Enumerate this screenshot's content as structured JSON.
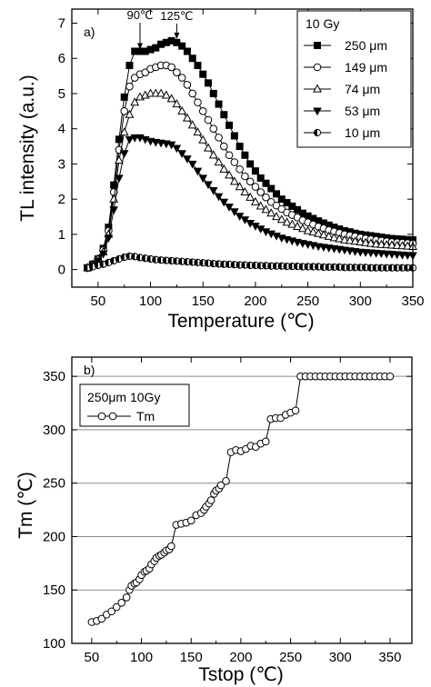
{
  "chart_data": [
    {
      "type": "line",
      "panel_label": "a)",
      "xlabel": "Temperature (℃)",
      "ylabel": "TL intensity (a.u.)",
      "xlim": [
        25,
        350
      ],
      "ylim": [
        -0.5,
        7.4
      ],
      "xticks": [
        50,
        100,
        150,
        200,
        250,
        300,
        350
      ],
      "xtick_labels": [
        "50",
        "100",
        "150",
        "200",
        "250",
        "300",
        "350"
      ],
      "yticks": [
        0,
        1,
        2,
        3,
        4,
        5,
        6,
        7
      ],
      "ytick_labels": [
        "0",
        "1",
        "2",
        "3",
        "4",
        "5",
        "6",
        "7"
      ],
      "grid": false,
      "legend_title": "10 Gy",
      "legend_position": "top-right",
      "annotations": [
        {
          "text": "90℃",
          "x": 90,
          "y": 6.2
        },
        {
          "text": "125℃",
          "x": 125,
          "y": 6.5
        }
      ],
      "series": [
        {
          "name": "250 μm",
          "marker": "square-filled",
          "x": [
            40,
            45,
            50,
            55,
            60,
            65,
            70,
            75,
            80,
            85,
            90,
            95,
            100,
            105,
            110,
            115,
            120,
            125,
            130,
            135,
            140,
            145,
            150,
            155,
            160,
            165,
            170,
            175,
            180,
            185,
            190,
            195,
            200,
            205,
            210,
            215,
            220,
            225,
            230,
            235,
            240,
            245,
            250,
            255,
            260,
            265,
            270,
            275,
            280,
            285,
            290,
            295,
            300,
            305,
            310,
            315,
            320,
            325,
            330,
            335,
            340,
            345,
            350
          ],
          "y": [
            0.05,
            0.15,
            0.3,
            0.6,
            1.2,
            2.4,
            3.7,
            4.9,
            5.8,
            6.2,
            6.2,
            6.2,
            6.25,
            6.3,
            6.4,
            6.45,
            6.5,
            6.45,
            6.35,
            6.2,
            6.0,
            5.8,
            5.55,
            5.3,
            5.0,
            4.7,
            4.4,
            4.1,
            3.8,
            3.5,
            3.25,
            3.0,
            2.8,
            2.6,
            2.45,
            2.3,
            2.15,
            2.0,
            1.9,
            1.8,
            1.7,
            1.6,
            1.52,
            1.45,
            1.38,
            1.32,
            1.26,
            1.2,
            1.15,
            1.1,
            1.07,
            1.03,
            1.0,
            0.98,
            0.96,
            0.94,
            0.92,
            0.9,
            0.88,
            0.87,
            0.86,
            0.85,
            0.84
          ]
        },
        {
          "name": "149 μm",
          "marker": "circle-open",
          "x": [
            40,
            45,
            50,
            55,
            60,
            65,
            70,
            75,
            80,
            85,
            90,
            95,
            100,
            105,
            110,
            115,
            120,
            125,
            130,
            135,
            140,
            145,
            150,
            155,
            160,
            165,
            170,
            175,
            180,
            185,
            190,
            195,
            200,
            205,
            210,
            215,
            220,
            225,
            230,
            235,
            240,
            245,
            250,
            255,
            260,
            265,
            270,
            275,
            280,
            285,
            290,
            295,
            300,
            305,
            310,
            315,
            320,
            325,
            330,
            335,
            340,
            345,
            350
          ],
          "y": [
            0.05,
            0.15,
            0.3,
            0.55,
            1.1,
            2.2,
            3.4,
            4.5,
            5.2,
            5.45,
            5.55,
            5.6,
            5.7,
            5.75,
            5.8,
            5.8,
            5.75,
            5.6,
            5.45,
            5.25,
            5.0,
            4.75,
            4.5,
            4.25,
            4.0,
            3.75,
            3.5,
            3.25,
            3.05,
            2.85,
            2.65,
            2.5,
            2.35,
            2.2,
            2.05,
            1.92,
            1.82,
            1.72,
            1.62,
            1.55,
            1.48,
            1.4,
            1.34,
            1.28,
            1.22,
            1.17,
            1.12,
            1.08,
            1.04,
            1.0,
            0.97,
            0.94,
            0.91,
            0.88,
            0.86,
            0.84,
            0.82,
            0.8,
            0.78,
            0.77,
            0.76,
            0.75,
            0.74
          ]
        },
        {
          "name": "74 μm",
          "marker": "triangle-up-open",
          "x": [
            40,
            45,
            50,
            55,
            60,
            65,
            70,
            75,
            80,
            85,
            90,
            95,
            100,
            105,
            110,
            115,
            120,
            125,
            130,
            135,
            140,
            145,
            150,
            155,
            160,
            165,
            170,
            175,
            180,
            185,
            190,
            195,
            200,
            205,
            210,
            215,
            220,
            225,
            230,
            235,
            240,
            245,
            250,
            255,
            260,
            265,
            270,
            275,
            280,
            285,
            290,
            295,
            300,
            305,
            310,
            315,
            320,
            325,
            330,
            335,
            340,
            345,
            350
          ],
          "y": [
            0.05,
            0.15,
            0.3,
            0.5,
            1.0,
            2.0,
            3.1,
            3.9,
            4.4,
            4.75,
            4.9,
            4.95,
            5.0,
            5.0,
            5.0,
            4.95,
            4.85,
            4.7,
            4.5,
            4.3,
            4.1,
            3.9,
            3.68,
            3.45,
            3.25,
            3.05,
            2.85,
            2.68,
            2.5,
            2.35,
            2.2,
            2.05,
            1.92,
            1.8,
            1.7,
            1.6,
            1.5,
            1.42,
            1.34,
            1.28,
            1.22,
            1.16,
            1.1,
            1.06,
            1.02,
            0.98,
            0.94,
            0.9,
            0.87,
            0.84,
            0.82,
            0.8,
            0.78,
            0.76,
            0.74,
            0.72,
            0.71,
            0.7,
            0.69,
            0.68,
            0.67,
            0.66,
            0.65
          ]
        },
        {
          "name": "53 μm",
          "marker": "triangle-down-filled",
          "x": [
            40,
            45,
            50,
            55,
            60,
            65,
            70,
            75,
            80,
            85,
            90,
            95,
            100,
            105,
            110,
            115,
            120,
            125,
            130,
            135,
            140,
            145,
            150,
            155,
            160,
            165,
            170,
            175,
            180,
            185,
            190,
            195,
            200,
            205,
            210,
            215,
            220,
            225,
            230,
            235,
            240,
            245,
            250,
            255,
            260,
            265,
            270,
            275,
            280,
            285,
            290,
            295,
            300,
            305,
            310,
            315,
            320,
            325,
            330,
            335,
            340,
            345,
            350
          ],
          "y": [
            0.05,
            0.12,
            0.25,
            0.45,
            0.9,
            1.7,
            2.6,
            3.3,
            3.7,
            3.75,
            3.75,
            3.7,
            3.65,
            3.62,
            3.6,
            3.58,
            3.55,
            3.45,
            3.3,
            3.15,
            3.0,
            2.8,
            2.6,
            2.42,
            2.25,
            2.08,
            1.92,
            1.78,
            1.65,
            1.52,
            1.42,
            1.32,
            1.24,
            1.16,
            1.08,
            1.02,
            0.96,
            0.9,
            0.86,
            0.82,
            0.78,
            0.75,
            0.72,
            0.69,
            0.66,
            0.64,
            0.62,
            0.6,
            0.58,
            0.56,
            0.54,
            0.52,
            0.5,
            0.49,
            0.48,
            0.47,
            0.46,
            0.45,
            0.44,
            0.43,
            0.42,
            0.41,
            0.4
          ]
        },
        {
          "name": "10 μm",
          "marker": "circle-half-filled",
          "x": [
            40,
            45,
            50,
            55,
            60,
            65,
            70,
            75,
            80,
            85,
            90,
            95,
            100,
            105,
            110,
            115,
            120,
            125,
            130,
            135,
            140,
            145,
            150,
            155,
            160,
            165,
            170,
            175,
            180,
            185,
            190,
            195,
            200,
            205,
            210,
            215,
            220,
            225,
            230,
            235,
            240,
            245,
            250,
            255,
            260,
            265,
            270,
            275,
            280,
            285,
            290,
            295,
            300,
            305,
            310,
            315,
            320,
            325,
            330,
            335,
            340,
            345,
            350
          ],
          "y": [
            0.05,
            0.08,
            0.12,
            0.15,
            0.2,
            0.25,
            0.3,
            0.35,
            0.38,
            0.37,
            0.34,
            0.32,
            0.3,
            0.28,
            0.27,
            0.26,
            0.25,
            0.24,
            0.23,
            0.22,
            0.21,
            0.2,
            0.19,
            0.18,
            0.17,
            0.16,
            0.15,
            0.15,
            0.14,
            0.13,
            0.13,
            0.12,
            0.12,
            0.11,
            0.11,
            0.1,
            0.1,
            0.1,
            0.09,
            0.09,
            0.09,
            0.08,
            0.08,
            0.08,
            0.08,
            0.07,
            0.07,
            0.07,
            0.07,
            0.06,
            0.06,
            0.06,
            0.06,
            0.06,
            0.05,
            0.05,
            0.05,
            0.05,
            0.05,
            0.05,
            0.05,
            0.05,
            0.05
          ]
        }
      ]
    },
    {
      "type": "line",
      "panel_label": "b)",
      "xlabel": "Tstop (℃)",
      "ylabel": "Tm (℃)",
      "xlim": [
        30,
        372
      ],
      "ylim": [
        100,
        368
      ],
      "xticks": [
        50,
        100,
        150,
        200,
        250,
        300,
        350
      ],
      "xtick_labels": [
        "50",
        "100",
        "150",
        "200",
        "250",
        "300",
        "350"
      ],
      "yticks": [
        100,
        150,
        200,
        250,
        300,
        350
      ],
      "ytick_labels": [
        "100",
        "150",
        "200",
        "250",
        "300",
        "350"
      ],
      "grid": true,
      "legend_title": "250μm 10Gy",
      "legend_position": "top-left",
      "series": [
        {
          "name": "Tm",
          "marker": "circle-open",
          "x": [
            50,
            55,
            60,
            65,
            70,
            75,
            80,
            85,
            88,
            90,
            93,
            95,
            98,
            100,
            103,
            105,
            108,
            110,
            113,
            115,
            118,
            120,
            123,
            125,
            128,
            130,
            135,
            140,
            145,
            150,
            155,
            160,
            163,
            165,
            168,
            170,
            173,
            175,
            178,
            180,
            185,
            190,
            195,
            200,
            205,
            210,
            215,
            220,
            225,
            230,
            235,
            240,
            245,
            250,
            255,
            260,
            265,
            270,
            275,
            280,
            285,
            290,
            295,
            300,
            305,
            310,
            315,
            320,
            325,
            330,
            335,
            340,
            345,
            350
          ],
          "y": [
            120,
            121,
            123,
            127,
            130,
            134,
            138,
            143,
            150,
            154,
            156,
            157,
            160,
            164,
            167,
            168,
            170,
            174,
            177,
            180,
            182,
            183,
            185,
            187,
            188,
            191,
            211,
            212,
            213,
            215,
            220,
            222,
            225,
            228,
            231,
            234,
            240,
            243,
            245,
            248,
            252,
            279,
            281,
            280,
            282,
            285,
            284,
            287,
            289,
            310,
            311,
            311,
            314,
            316,
            318,
            350,
            350,
            350,
            350,
            350,
            350,
            350,
            350,
            350,
            350,
            350,
            350,
            350,
            350,
            350,
            350,
            350,
            350,
            350
          ]
        }
      ]
    }
  ]
}
